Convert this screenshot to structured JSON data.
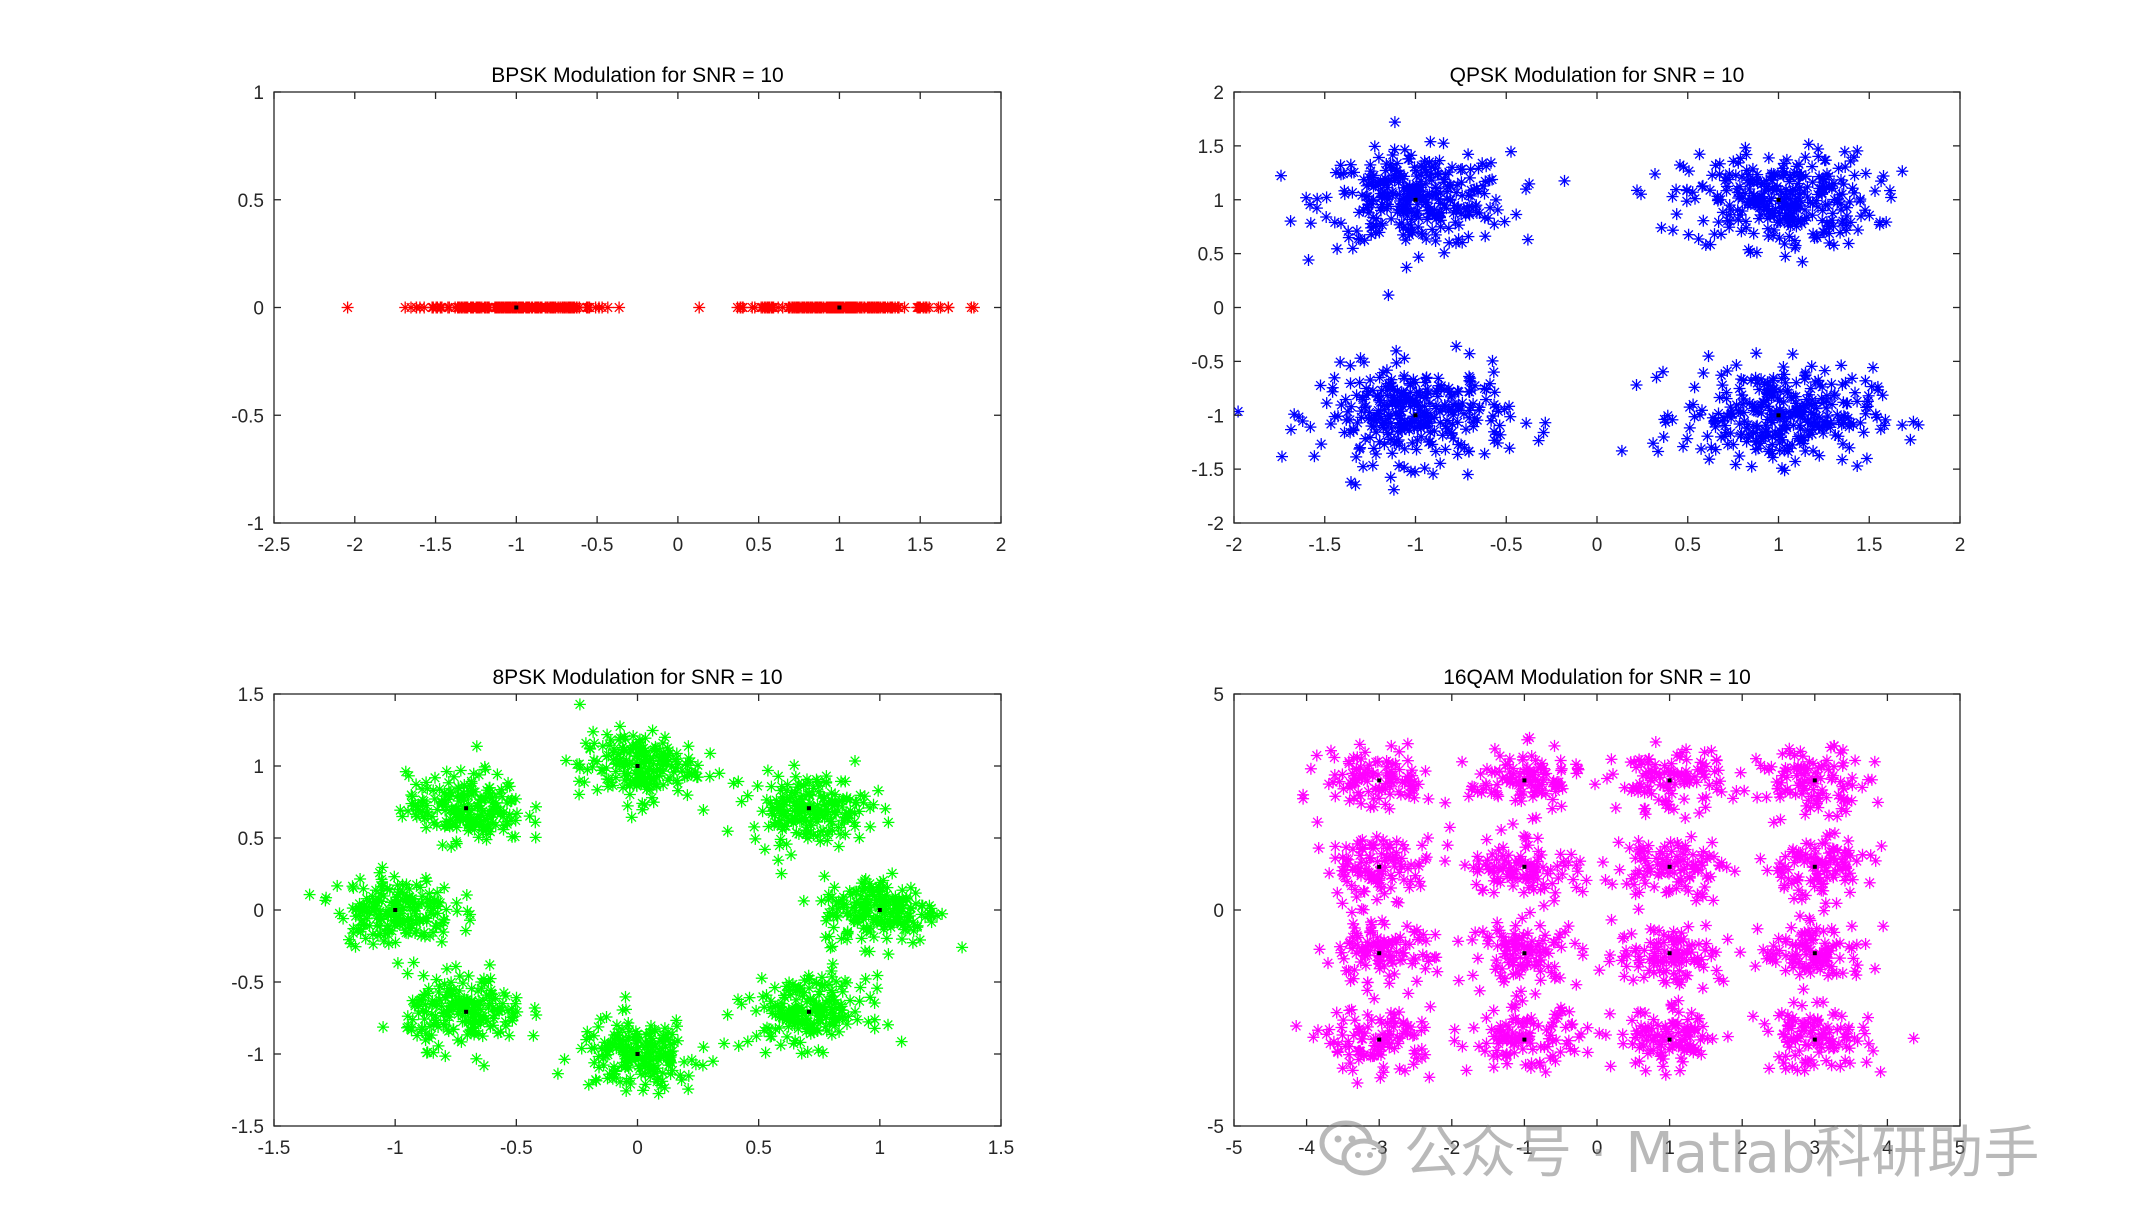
{
  "figure": {
    "background": "#ffffff"
  },
  "watermark": {
    "text": "公众号 · Matlab科研助手",
    "icon": "wechat-bubble-icon"
  },
  "chart_data": [
    {
      "type": "scatter",
      "title": "BPSK Modulation for SNR = 10",
      "xlim": [
        -2.5,
        2
      ],
      "ylim": [
        -1,
        1
      ],
      "xticks": [
        -2.5,
        -2,
        -1.5,
        -1,
        -0.5,
        0,
        0.5,
        1,
        1.5,
        2
      ],
      "yticks": [
        -1,
        -0.5,
        0,
        0.5,
        1
      ],
      "xtick_labels": [
        "-2.5",
        "-2",
        "-1.5",
        "-1",
        "-0.5",
        "0",
        "0.5",
        "1",
        "1.5",
        "2"
      ],
      "ytick_labels": [
        "-1",
        "-0.5",
        "0",
        "0.5",
        "1"
      ],
      "color": "#ff0000",
      "marker": "asterisk",
      "grid": false,
      "constellation_points": [
        [
          -1,
          0
        ],
        [
          1,
          0
        ]
      ],
      "spread": [
        0.3,
        0
      ],
      "samples_per_point": 180,
      "reference_color": "#000000"
    },
    {
      "type": "scatter",
      "title": "QPSK Modulation for SNR = 10",
      "xlim": [
        -2,
        2
      ],
      "ylim": [
        -2,
        2
      ],
      "xticks": [
        -2,
        -1.5,
        -1,
        -0.5,
        0,
        0.5,
        1,
        1.5,
        2
      ],
      "yticks": [
        -2,
        -1.5,
        -1,
        -0.5,
        0,
        0.5,
        1,
        1.5,
        2
      ],
      "xtick_labels": [
        "-2",
        "-1.5",
        "-1",
        "-0.5",
        "0",
        "0.5",
        "1",
        "1.5",
        "2"
      ],
      "ytick_labels": [
        "-2",
        "-1.5",
        "-1",
        "-0.5",
        "0",
        "0.5",
        "1",
        "1.5",
        "2"
      ],
      "color": "#0000ff",
      "marker": "asterisk",
      "grid": false,
      "constellation_points": [
        [
          -1,
          1
        ],
        [
          1,
          1
        ],
        [
          -1,
          -1
        ],
        [
          1,
          -1
        ]
      ],
      "spread": [
        0.26,
        0.22
      ],
      "samples_per_point": 320,
      "reference_color": "#000000"
    },
    {
      "type": "scatter",
      "title": "8PSK Modulation for SNR = 10",
      "xlim": [
        -1.5,
        1.5
      ],
      "ylim": [
        -1.5,
        1.5
      ],
      "xticks": [
        -1.5,
        -1,
        -0.5,
        0,
        0.5,
        1,
        1.5
      ],
      "yticks": [
        -1.5,
        -1,
        -0.5,
        0,
        0.5,
        1,
        1.5
      ],
      "xtick_labels": [
        "-1.5",
        "-1",
        "-0.5",
        "0",
        "0.5",
        "1",
        "1.5"
      ],
      "ytick_labels": [
        "-1.5",
        "-1",
        "-0.5",
        "0",
        "0.5",
        "1",
        "1.5"
      ],
      "color": "#00ff00",
      "marker": "asterisk",
      "grid": false,
      "constellation_points": [
        [
          1,
          0
        ],
        [
          0.7071,
          0.7071
        ],
        [
          0,
          1
        ],
        [
          -0.7071,
          0.7071
        ],
        [
          -1,
          0
        ],
        [
          -0.7071,
          -0.7071
        ],
        [
          0,
          -1
        ],
        [
          0.7071,
          -0.7071
        ]
      ],
      "spread": [
        0.12,
        0.12
      ],
      "samples_per_point": 200,
      "reference_color": "#000000"
    },
    {
      "type": "scatter",
      "title": "16QAM Modulation for SNR = 10",
      "xlim": [
        -5,
        5
      ],
      "ylim": [
        -5,
        5
      ],
      "xticks": [
        -5,
        -4,
        -3,
        -2,
        -1,
        0,
        1,
        2,
        3,
        4,
        5
      ],
      "yticks": [
        -5,
        0,
        5
      ],
      "xtick_labels": [
        "-5",
        "-4",
        "-3",
        "-2",
        "-1",
        "0",
        "1",
        "2",
        "3",
        "4",
        "5"
      ],
      "ytick_labels": [
        "-5",
        "0",
        "5"
      ],
      "color": "#ff00ff",
      "marker": "asterisk",
      "grid": false,
      "constellation_points": [
        [
          -3,
          3
        ],
        [
          -1,
          3
        ],
        [
          1,
          3
        ],
        [
          3,
          3
        ],
        [
          -3,
          1
        ],
        [
          -1,
          1
        ],
        [
          1,
          1
        ],
        [
          3,
          1
        ],
        [
          -3,
          -1
        ],
        [
          -1,
          -1
        ],
        [
          1,
          -1
        ],
        [
          3,
          -1
        ],
        [
          -3,
          -3
        ],
        [
          -1,
          -3
        ],
        [
          1,
          -3
        ],
        [
          3,
          -3
        ]
      ],
      "spread": [
        0.38,
        0.36
      ],
      "samples_per_point": 110,
      "reference_color": "#000000"
    }
  ]
}
